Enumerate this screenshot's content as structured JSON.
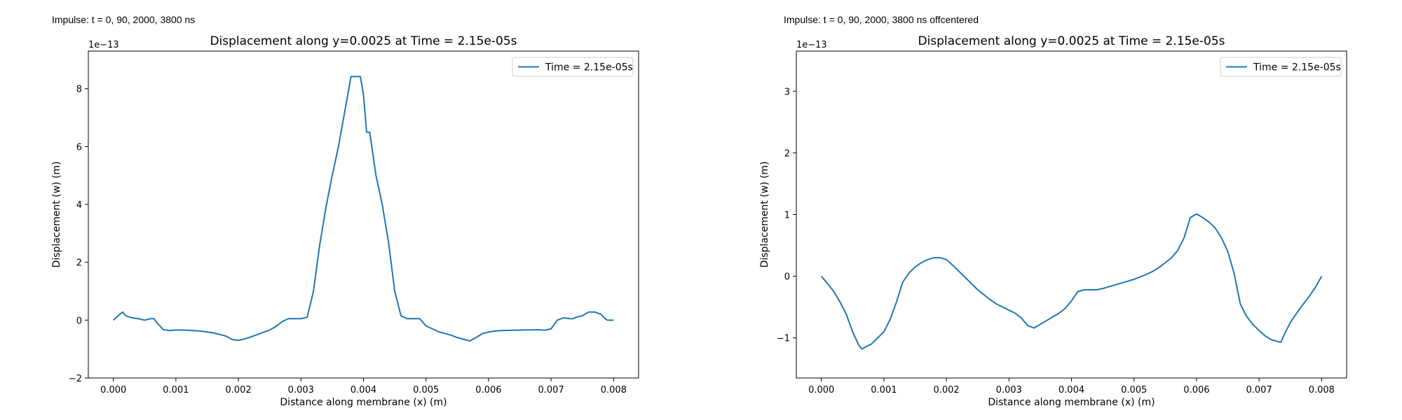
{
  "panels": [
    {
      "impulse_label": "Impulse: t = 0, 90, 2000, 3800 ns"
    },
    {
      "impulse_label": "Impulse: t = 0, 90, 2000, 3800 ns offcentered"
    }
  ],
  "chart_data": [
    {
      "type": "line",
      "title": "Displacement along y=0.0025 at Time = 2.15e-05s",
      "xlabel": "Distance along membrane (x) (m)",
      "ylabel": "Displacement (w) (m)",
      "y_offset_label": "1e−13",
      "xlim": [
        -0.0004,
        0.0084
      ],
      "ylim": [
        -2.0,
        9.3
      ],
      "xticks": [
        0.0,
        0.001,
        0.002,
        0.003,
        0.004,
        0.005,
        0.006,
        0.007,
        0.008
      ],
      "xtick_labels": [
        "0.000",
        "0.001",
        "0.002",
        "0.003",
        "0.004",
        "0.005",
        "0.006",
        "0.007",
        "0.008"
      ],
      "yticks": [
        -2,
        0,
        2,
        4,
        6,
        8
      ],
      "ytick_labels": [
        "−2",
        "0",
        "2",
        "4",
        "6",
        "8"
      ],
      "legend_position": "top-right",
      "series": [
        {
          "name": "Time = 2.15e-05s",
          "color": "#1f77b4",
          "x": [
            0.0,
            0.0001,
            0.00015,
            0.0002,
            0.0003,
            0.0004,
            0.0005,
            0.0006,
            0.00065,
            0.0007,
            0.0008,
            0.0009,
            0.001,
            0.0012,
            0.0014,
            0.0016,
            0.0018,
            0.0019,
            0.002,
            0.0021,
            0.0022,
            0.0023,
            0.0024,
            0.0025,
            0.0026,
            0.0027,
            0.0028,
            0.0029,
            0.003,
            0.0031,
            0.0032,
            0.0033,
            0.0034,
            0.0035,
            0.0036,
            0.0037,
            0.0038,
            0.0039,
            0.00395,
            0.004,
            0.00405,
            0.0041,
            0.0042,
            0.0043,
            0.0044,
            0.0045,
            0.0046,
            0.0047,
            0.0048,
            0.0049,
            0.005,
            0.0051,
            0.0052,
            0.0053,
            0.0054,
            0.0055,
            0.0056,
            0.0057,
            0.0058,
            0.0059,
            0.006,
            0.0061,
            0.0062,
            0.0064,
            0.0066,
            0.0068,
            0.0069,
            0.007,
            0.0071,
            0.0072,
            0.0073,
            0.00735,
            0.0074,
            0.0075,
            0.0076,
            0.0077,
            0.0078,
            0.00785,
            0.0079,
            0.008
          ],
          "y": [
            0.0,
            0.2,
            0.28,
            0.15,
            0.08,
            0.05,
            0.0,
            0.05,
            0.05,
            -0.1,
            -0.33,
            -0.36,
            -0.34,
            -0.35,
            -0.38,
            -0.44,
            -0.55,
            -0.67,
            -0.7,
            -0.65,
            -0.58,
            -0.5,
            -0.42,
            -0.34,
            -0.22,
            -0.05,
            0.05,
            0.05,
            0.05,
            0.1,
            1.0,
            2.6,
            3.9,
            5.0,
            6.0,
            7.2,
            8.42,
            8.42,
            8.42,
            7.8,
            6.5,
            6.5,
            5.0,
            4.0,
            2.7,
            1.0,
            0.15,
            0.05,
            0.05,
            0.05,
            -0.2,
            -0.3,
            -0.4,
            -0.46,
            -0.52,
            -0.6,
            -0.66,
            -0.72,
            -0.6,
            -0.47,
            -0.41,
            -0.38,
            -0.36,
            -0.35,
            -0.34,
            -0.33,
            -0.35,
            -0.3,
            0.0,
            0.08,
            0.05,
            0.05,
            0.1,
            0.15,
            0.28,
            0.28,
            0.2,
            0.08,
            0.0,
            0.0
          ]
        }
      ]
    },
    {
      "type": "line",
      "title": "Displacement along y=0.0025 at Time = 2.15e-05s",
      "xlabel": "Distance along membrane (x) (m)",
      "ylabel": "Displacement (w) (m)",
      "y_offset_label": "1e−13",
      "xlim": [
        -0.0004,
        0.0084
      ],
      "ylim": [
        -1.65,
        3.65
      ],
      "xticks": [
        0.0,
        0.001,
        0.002,
        0.003,
        0.004,
        0.005,
        0.006,
        0.007,
        0.008
      ],
      "xtick_labels": [
        "0.000",
        "0.001",
        "0.002",
        "0.003",
        "0.004",
        "0.005",
        "0.006",
        "0.007",
        "0.008"
      ],
      "yticks": [
        -1,
        0,
        1,
        2,
        3
      ],
      "ytick_labels": [
        "−1",
        "0",
        "1",
        "2",
        "3"
      ],
      "legend_position": "top-right",
      "series": [
        {
          "name": "Time = 2.15e-05s",
          "color": "#1f77b4",
          "x": [
            0.0,
            0.0001,
            0.0002,
            0.0003,
            0.0004,
            0.0005,
            0.0006,
            0.00065,
            0.0007,
            0.0008,
            0.0009,
            0.001,
            0.0011,
            0.0012,
            0.0013,
            0.0014,
            0.0015,
            0.0016,
            0.0017,
            0.0018,
            0.0019,
            0.002,
            0.0021,
            0.0022,
            0.0023,
            0.0024,
            0.0025,
            0.0026,
            0.0027,
            0.0028,
            0.0029,
            0.003,
            0.0031,
            0.0032,
            0.0033,
            0.0034,
            0.0035,
            0.0036,
            0.0037,
            0.0038,
            0.0039,
            0.004,
            0.0041,
            0.0042,
            0.0043,
            0.0044,
            0.0045,
            0.0046,
            0.0047,
            0.0048,
            0.0049,
            0.005,
            0.0051,
            0.0052,
            0.0053,
            0.0054,
            0.0055,
            0.0056,
            0.0057,
            0.0058,
            0.0059,
            0.006,
            0.0061,
            0.0062,
            0.0063,
            0.0064,
            0.0065,
            0.0066,
            0.0067,
            0.0068,
            0.0069,
            0.007,
            0.0071,
            0.0072,
            0.0073,
            0.00735,
            0.0074,
            0.0075,
            0.0076,
            0.0077,
            0.0078,
            0.0079,
            0.008
          ],
          "y": [
            0.0,
            -0.12,
            -0.25,
            -0.42,
            -0.62,
            -0.9,
            -1.12,
            -1.18,
            -1.15,
            -1.1,
            -1.0,
            -0.9,
            -0.7,
            -0.42,
            -0.1,
            0.05,
            0.15,
            0.22,
            0.27,
            0.3,
            0.3,
            0.27,
            0.18,
            0.08,
            -0.02,
            -0.12,
            -0.22,
            -0.3,
            -0.38,
            -0.45,
            -0.5,
            -0.55,
            -0.6,
            -0.68,
            -0.8,
            -0.84,
            -0.78,
            -0.72,
            -0.66,
            -0.6,
            -0.52,
            -0.4,
            -0.25,
            -0.22,
            -0.22,
            -0.22,
            -0.2,
            -0.17,
            -0.14,
            -0.11,
            -0.08,
            -0.05,
            -0.01,
            0.03,
            0.08,
            0.14,
            0.22,
            0.3,
            0.42,
            0.62,
            0.95,
            1.01,
            0.95,
            0.88,
            0.78,
            0.62,
            0.4,
            0.05,
            -0.45,
            -0.65,
            -0.78,
            -0.88,
            -0.97,
            -1.03,
            -1.06,
            -1.07,
            -0.95,
            -0.75,
            -0.6,
            -0.46,
            -0.33,
            -0.18,
            0.0
          ]
        }
      ]
    }
  ]
}
